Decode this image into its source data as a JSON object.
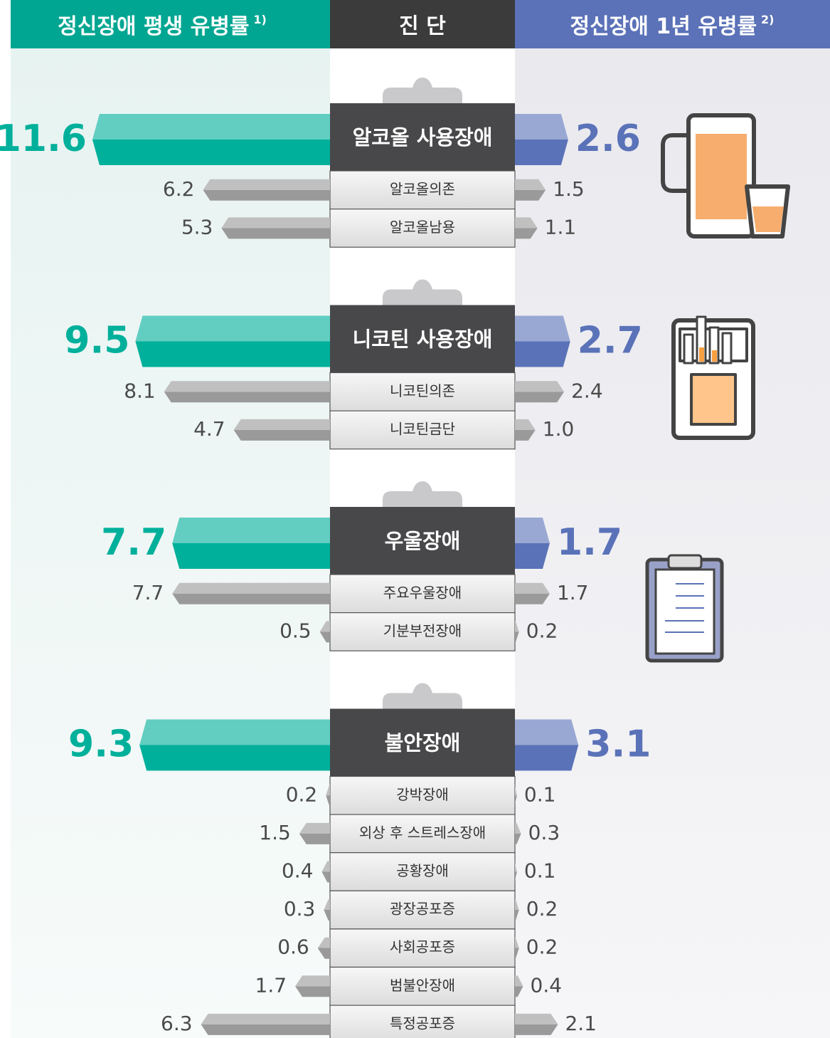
{
  "chart_data": {
    "type": "butterfly",
    "left_title": "정신장애 평생 유병률",
    "left_note": "1)",
    "center_title": "진 단",
    "right_title": "정신장애 1년 유병률",
    "right_note": "2)",
    "left_color": "#00b09b",
    "right_color": "#5a72b8",
    "sub_color": "#9a9a9a",
    "groups": [
      {
        "name": "알코올 사용장애",
        "lifetime": 11.6,
        "yearly": 2.6,
        "items": [
          {
            "name": "알코올의존",
            "lifetime": 6.2,
            "yearly": 1.5
          },
          {
            "name": "알코올남용",
            "lifetime": 5.3,
            "yearly": 1.1
          }
        ]
      },
      {
        "name": "니코틴 사용장애",
        "lifetime": 9.5,
        "yearly": 2.7,
        "items": [
          {
            "name": "니코틴의존",
            "lifetime": 8.1,
            "yearly": 2.4
          },
          {
            "name": "니코틴금단",
            "lifetime": 4.7,
            "yearly": 1,
            "yearly_label": "1.0"
          }
        ]
      },
      {
        "name": "우울장애",
        "lifetime": 7.7,
        "yearly": 1.7,
        "items": [
          {
            "name": "주요우울장애",
            "lifetime": 7.7,
            "yearly": 1.7
          },
          {
            "name": "기분부전장애",
            "lifetime": 0.5,
            "yearly": 0.2
          }
        ]
      },
      {
        "name": "불안장애",
        "lifetime": 9.3,
        "yearly": 3.1,
        "items": [
          {
            "name": "강박장애",
            "lifetime": 0.2,
            "yearly": 0.1
          },
          {
            "name": "외상 후 스트레스장애",
            "lifetime": 1.5,
            "yearly": 0.3
          },
          {
            "name": "공황장애",
            "lifetime": 0.4,
            "yearly": 0.1
          },
          {
            "name": "광장공포증",
            "lifetime": 0.3,
            "yearly": 0.2
          },
          {
            "name": "사회공포증",
            "lifetime": 0.6,
            "yearly": 0.2
          },
          {
            "name": "범불안장애",
            "lifetime": 1.7,
            "yearly": 0.4
          },
          {
            "name": "특정공포증",
            "lifetime": 6.3,
            "yearly": 2.1
          }
        ]
      }
    ]
  }
}
